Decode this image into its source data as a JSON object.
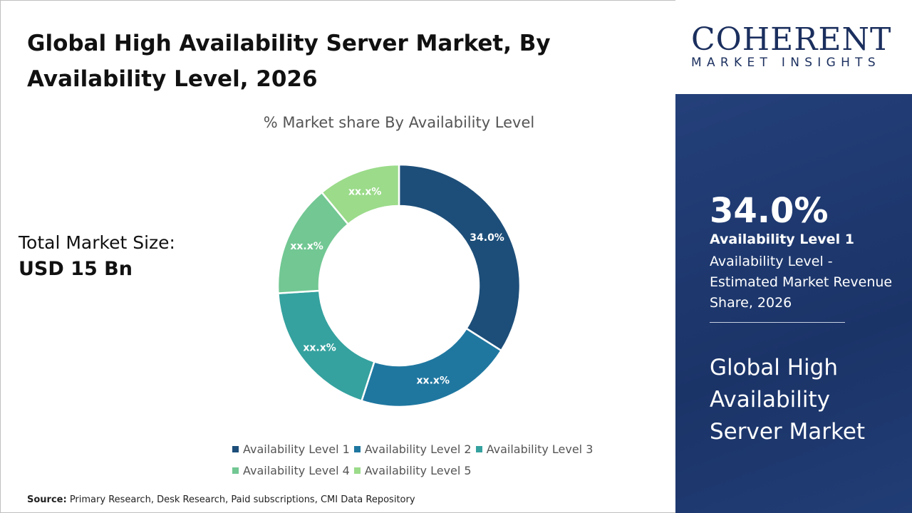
{
  "header": {
    "title": "Global High Availability Server Market, By Availability Level, 2026"
  },
  "market_size": {
    "label": "Total Market Size:",
    "value": "USD 15 Bn"
  },
  "source": {
    "label": "Source:",
    "text": " Primary Research, Desk Research, Paid subscriptions, CMI Data Repository"
  },
  "logo": {
    "text_top": "COHERENT",
    "text_bottom": "MARKET INSIGHTS"
  },
  "panel": {
    "percent": "34.0%",
    "level": "Availability Level 1",
    "description": "Availability Level - Estimated Market Revenue Share, 2026",
    "market": "Global High Availability Server Market"
  },
  "chart_data": {
    "type": "pie",
    "donut": true,
    "title": "% Market share By Availability Level",
    "categories": [
      "Availability Level 1",
      "Availability Level 2",
      "Availability Level 3",
      "Availability Level 4",
      "Availability Level 5"
    ],
    "values": [
      34.0,
      21,
      19,
      15,
      11
    ],
    "data_labels": [
      "34.0%",
      "xx.x%",
      "xx.x%",
      "xx.x%",
      "xx.x%"
    ],
    "colors": [
      "#1d4e79",
      "#1f77a0",
      "#35a29f",
      "#72c793",
      "#9bdb8a"
    ],
    "legend_position": "bottom"
  }
}
